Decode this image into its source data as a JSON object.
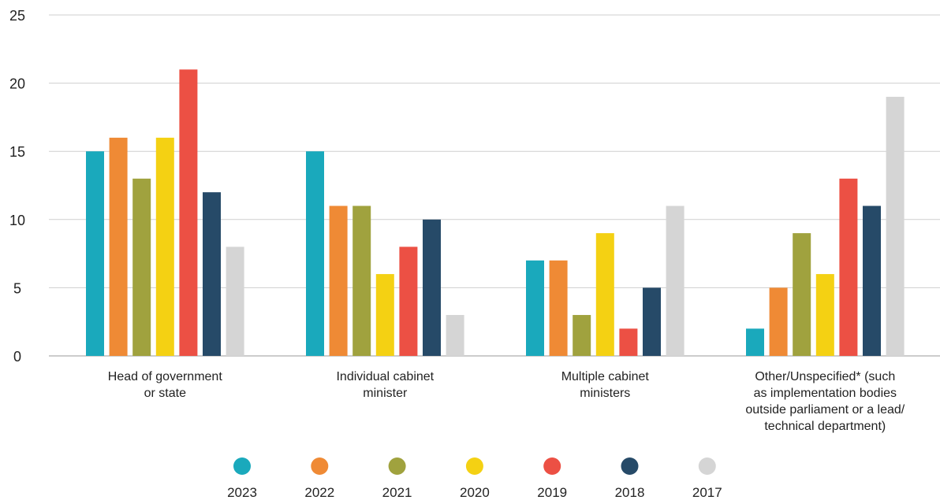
{
  "chart_data": {
    "type": "bar",
    "categories": [
      [
        "Head of government",
        "or state"
      ],
      [
        "Individual cabinet",
        "minister"
      ],
      [
        "Multiple cabinet",
        "ministers"
      ],
      [
        "Other/Unspecified* (such",
        "as implementation bodies",
        "outside parliament or a lead/",
        "technical department)"
      ]
    ],
    "series": [
      {
        "name": "2023",
        "color": "#1aa9bc",
        "values": [
          15,
          15,
          7,
          2
        ]
      },
      {
        "name": "2022",
        "color": "#ef8a35",
        "values": [
          16,
          11,
          7,
          5
        ]
      },
      {
        "name": "2021",
        "color": "#a0a23e",
        "values": [
          13,
          11,
          3,
          9
        ]
      },
      {
        "name": "2020",
        "color": "#f4d113",
        "values": [
          16,
          6,
          9,
          6
        ]
      },
      {
        "name": "2019",
        "color": "#ec5044",
        "values": [
          21,
          8,
          2,
          13
        ]
      },
      {
        "name": "2018",
        "color": "#264a68",
        "values": [
          12,
          10,
          5,
          11
        ]
      },
      {
        "name": "2017",
        "color": "#d5d5d5",
        "values": [
          8,
          3,
          11,
          19
        ]
      }
    ],
    "yticks": [
      0,
      5,
      10,
      15,
      20,
      25
    ],
    "ylim": [
      0,
      25
    ],
    "grid": true,
    "legend_position": "bottom",
    "title": "",
    "xlabel": "",
    "ylabel": ""
  }
}
